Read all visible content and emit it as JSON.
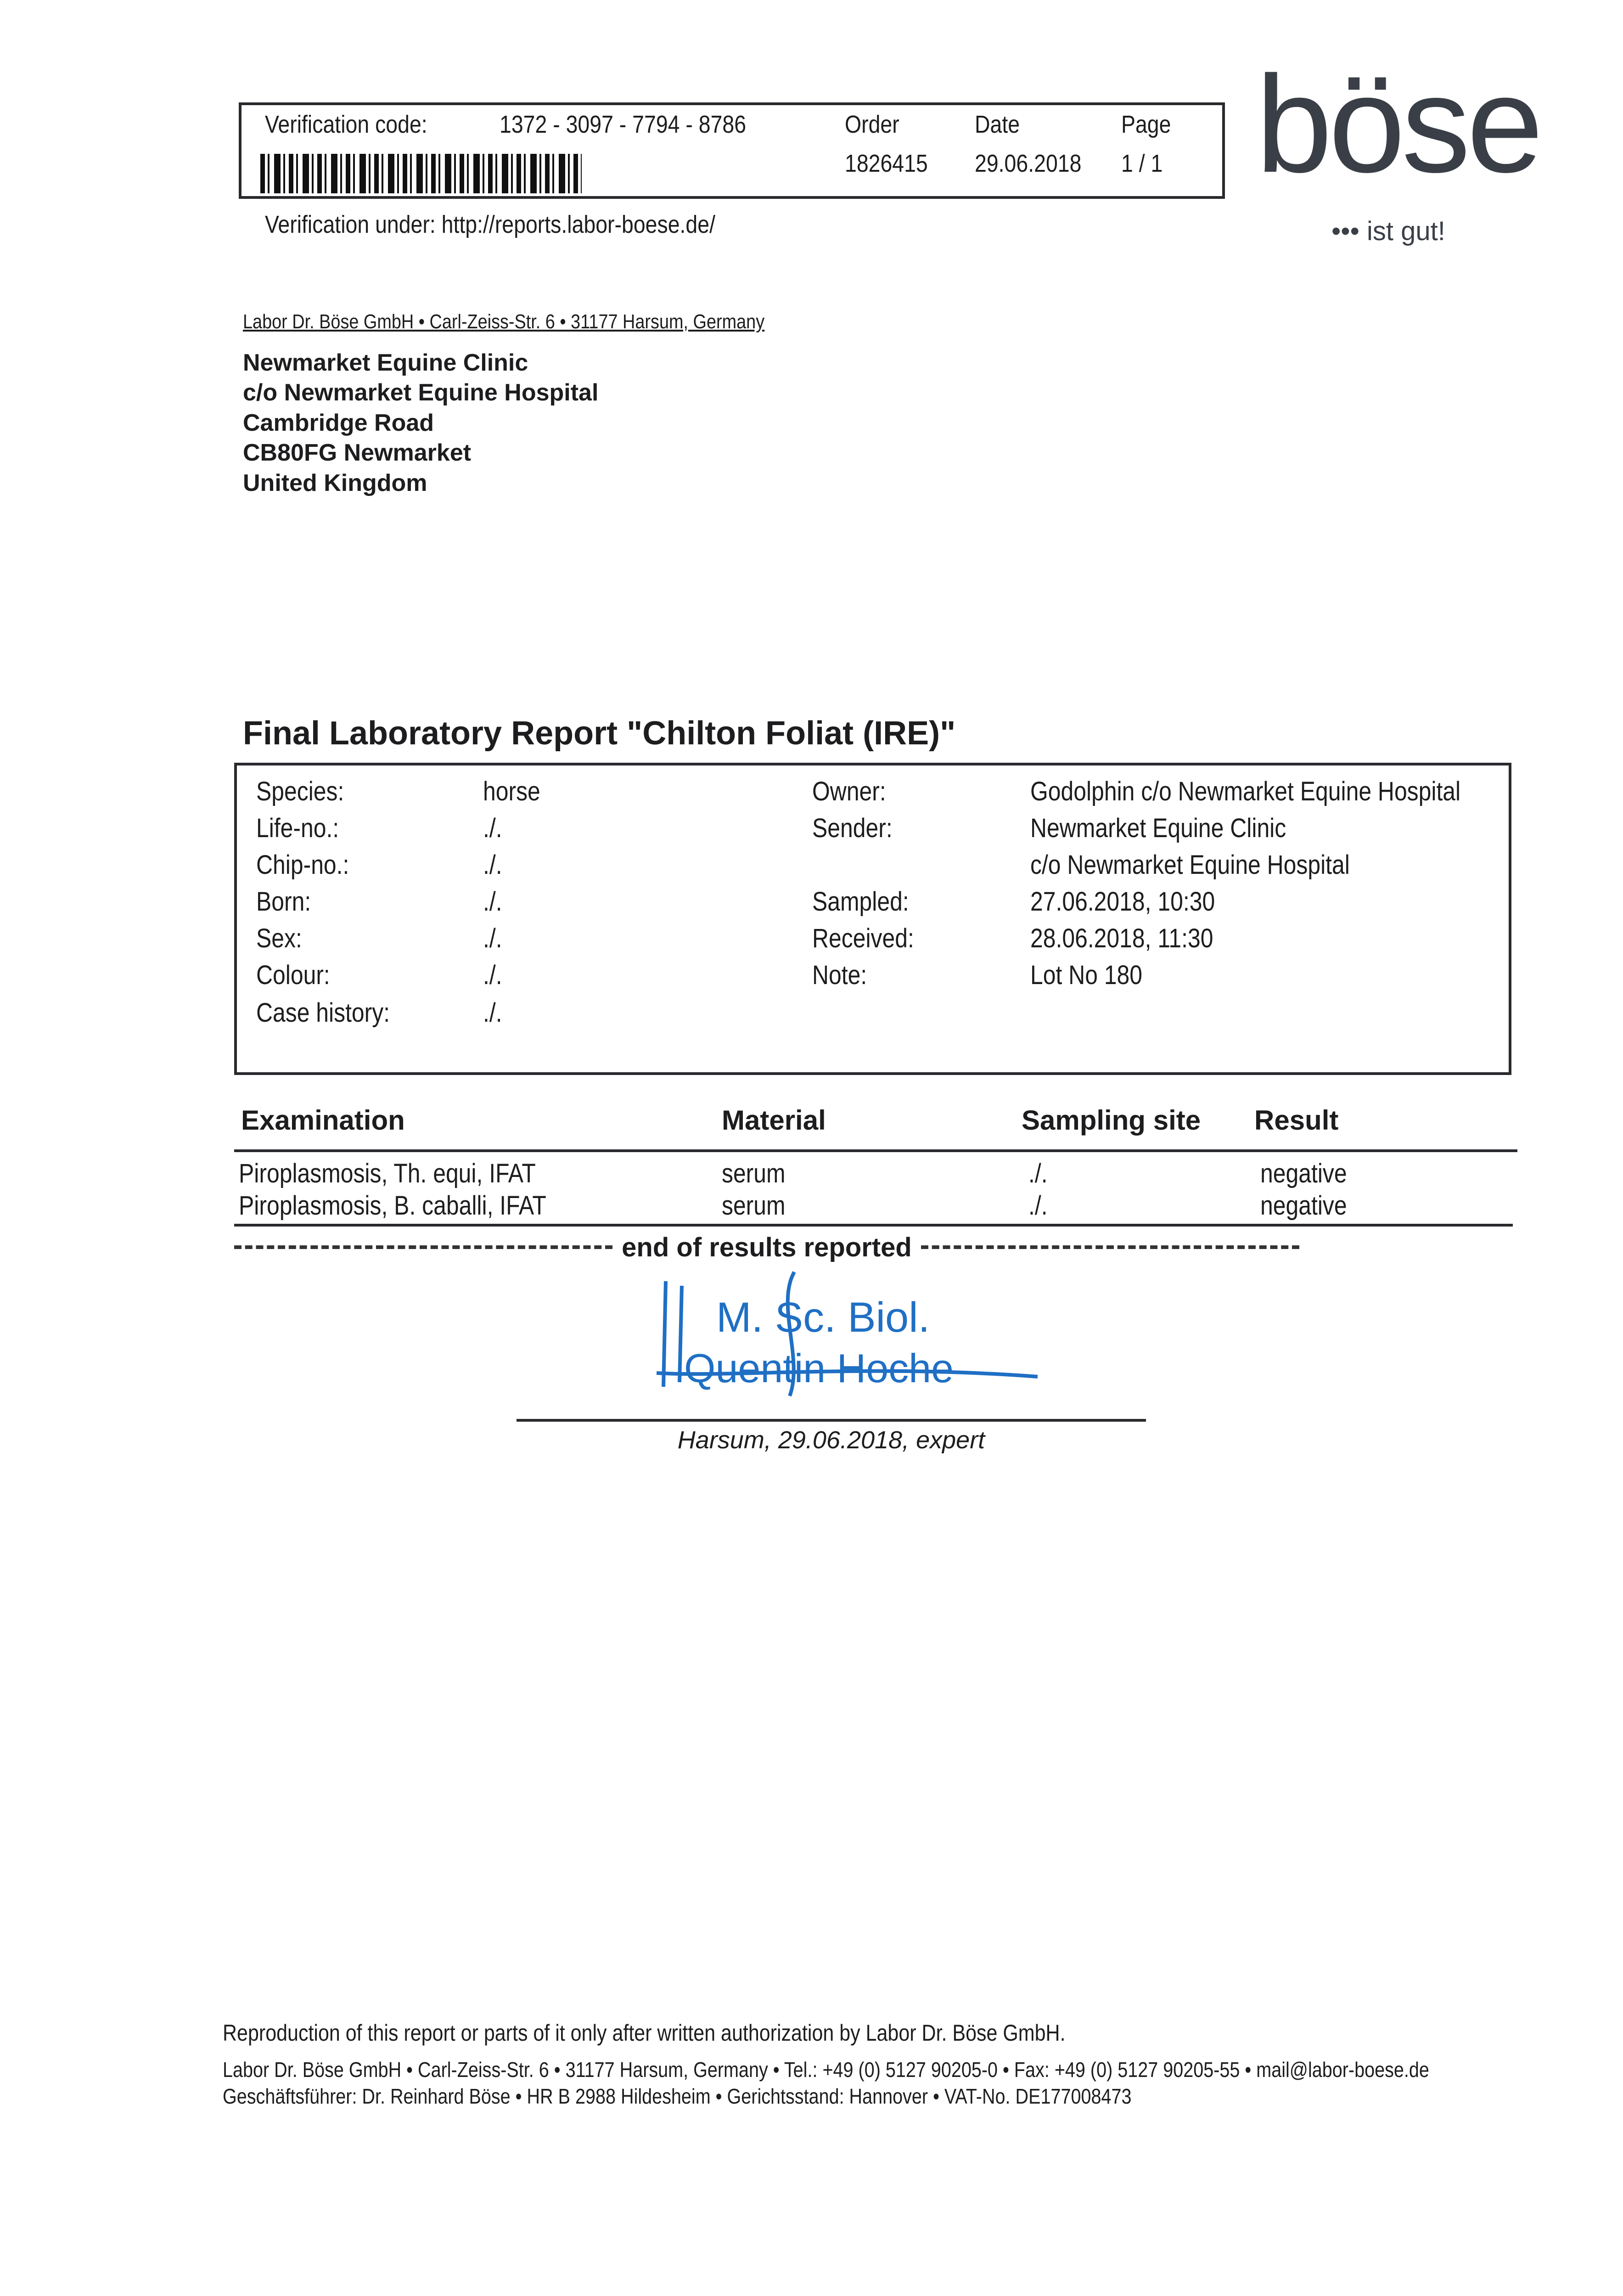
{
  "header": {
    "verification_label": "Verification code:",
    "verification_code": "1372 - 3097 - 7794 - 8786",
    "order_label": "Order",
    "order_value": "1826415",
    "date_label": "Date",
    "date_value": "29.06.2018",
    "page_label": "Page",
    "page_value": "1 / 1",
    "verification_url": "Verification under: http://reports.labor-boese.de/"
  },
  "logo": {
    "text": "böse",
    "tagline": "••• ist gut!",
    "color": "#3a3f47"
  },
  "sender_line": "Labor Dr. Böse GmbH • Carl-Zeiss-Str. 6 • 31177 Harsum, Germany",
  "recipient": [
    "Newmarket Equine Clinic",
    "c/o Newmarket Equine Hospital",
    "Cambridge Road",
    "CB80FG Newmarket",
    "United Kingdom"
  ],
  "title": "Final Laboratory Report \"Chilton Foliat (IRE)\"",
  "info_left": [
    {
      "label": "Species:",
      "value": "horse"
    },
    {
      "label": "Life-no.:",
      "value": "./."
    },
    {
      "label": "Chip-no.:",
      "value": "./."
    },
    {
      "label": "Born:",
      "value": "./."
    },
    {
      "label": "Sex:",
      "value": "./."
    },
    {
      "label": "Colour:",
      "value": "./."
    },
    {
      "label": "Case history:",
      "value": "./."
    }
  ],
  "info_right": [
    {
      "label": "Owner:",
      "value": "Godolphin c/o Newmarket Equine Hospital"
    },
    {
      "label": "Sender:",
      "value": "Newmarket Equine Clinic"
    },
    {
      "label": "",
      "value": "c/o Newmarket Equine Hospital"
    },
    {
      "label": "Sampled:",
      "value": "27.06.2018, 10:30"
    },
    {
      "label": "Received:",
      "value": "28.06.2018, 11:30"
    },
    {
      "label": "Note:",
      "value": "Lot No 180"
    }
  ],
  "results": {
    "headers": [
      "Examination",
      "Material",
      "Sampling site",
      "Result"
    ],
    "rows": [
      [
        "Piroplasmosis, Th. equi, IFAT",
        "serum",
        "./.",
        "negative"
      ],
      [
        "Piroplasmosis, B. caballi, IFAT",
        "serum",
        "./.",
        "negative"
      ]
    ],
    "end_text": "end of results reported"
  },
  "signature": {
    "stamp_line1": "M. Sc. Biol.",
    "stamp_line2": "Quentin Hoche",
    "stamp_color": "#1f6fc4",
    "caption": "Harsum, 29.06.2018, expert"
  },
  "footer": {
    "reproduction": "Reproduction of this report or parts of it only after written authorization by Labor Dr. Böse GmbH.",
    "contact": "Labor Dr. Böse GmbH • Carl-Zeiss-Str. 6 • 31177 Harsum, Germany • Tel.: +49 (0) 5127 90205-0 • Fax: +49 (0) 5127 90205-55 • mail@labor-boese.de",
    "legal": "Geschäftsführer: Dr. Reinhard Böse • HR B 2988 Hildesheim • Gerichtsstand: Hannover • VAT-No. DE177008473"
  }
}
